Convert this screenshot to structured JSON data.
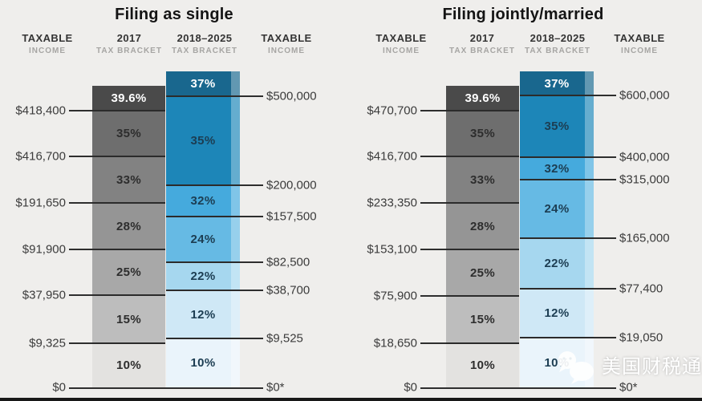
{
  "page": {
    "background": "#efeeec",
    "bottom_bar_color": "#181818"
  },
  "watermark": {
    "icon": "chat-bubbles-icon",
    "text": "美国财税通",
    "color": "#ffffff"
  },
  "palette": {
    "gray_segments": [
      "#4a4a4a",
      "#6e6e6e",
      "#828282",
      "#959595",
      "#a8a8a8",
      "#bdbdbd",
      "#e3e2e0"
    ],
    "blue_segments": [
      "#19678e",
      "#1d86b8",
      "#45aadd",
      "#66bae4",
      "#a6d7ef",
      "#cfe8f6",
      "#eaf4fb"
    ],
    "rate_text_light": "#ffffff",
    "rate_text_gray": "#2d2d2d",
    "rate_text_blue": "#1c3d52",
    "threshold_text": "#3b3b3b",
    "tick": "#2e2e2e"
  },
  "chart_data": [
    {
      "type": "bar",
      "subtype": "stacked-tax-bracket-comparison",
      "title": "Filing as single",
      "columns": [
        {
          "label": "TAXABLE",
          "sublabel": "INCOME"
        },
        {
          "label": "2017",
          "sublabel": "TAX BRACKET"
        },
        {
          "label": "2018–2025",
          "sublabel": "TAX BRACKET"
        },
        {
          "label": "TAXABLE",
          "sublabel": "INCOME"
        }
      ],
      "left_thresholds": [
        "$418,400",
        "$416,700",
        "$191,650",
        "$91,900",
        "$37,950",
        "$9,325",
        "$0"
      ],
      "series": [
        {
          "name": "2017 TAX BRACKET",
          "rates_top_to_bottom": [
            "39.6%",
            "35%",
            "33%",
            "28%",
            "25%",
            "15%",
            "10%"
          ]
        },
        {
          "name": "2018–2025 TAX BRACKET",
          "rates_top_to_bottom": [
            "37%",
            "35%",
            "32%",
            "24%",
            "22%",
            "12%",
            "10%"
          ]
        }
      ],
      "right_thresholds": [
        "$500,000",
        "$200,000",
        "$157,500",
        "$82,500",
        "$38,700",
        "$9,525",
        "$0*"
      ]
    },
    {
      "type": "bar",
      "subtype": "stacked-tax-bracket-comparison",
      "title": "Filing jointly/married",
      "columns": [
        {
          "label": "TAXABLE",
          "sublabel": "INCOME"
        },
        {
          "label": "2017",
          "sublabel": "TAX BRACKET"
        },
        {
          "label": "2018–2025",
          "sublabel": "TAX BRACKET"
        },
        {
          "label": "TAXABLE",
          "sublabel": "INCOME"
        }
      ],
      "left_thresholds": [
        "$470,700",
        "$416,700",
        "$233,350",
        "$153,100",
        "$75,900",
        "$18,650",
        "$0"
      ],
      "series": [
        {
          "name": "2017 TAX BRACKET",
          "rates_top_to_bottom": [
            "39.6%",
            "35%",
            "33%",
            "28%",
            "25%",
            "15%",
            "10%"
          ]
        },
        {
          "name": "2018–2025 TAX BRACKET",
          "rates_top_to_bottom": [
            "37%",
            "35%",
            "32%",
            "24%",
            "22%",
            "12%",
            "10%"
          ]
        }
      ],
      "right_thresholds": [
        "$600,000",
        "$400,000",
        "$315,000",
        "$165,000",
        "$77,400",
        "$19,050",
        "$0*"
      ]
    }
  ]
}
